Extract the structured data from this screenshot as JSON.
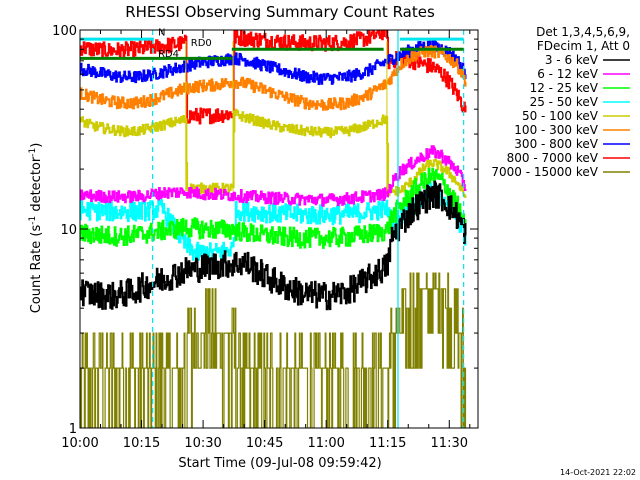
{
  "chart_data": {
    "type": "line",
    "title": "RHESSI Observing Summary Count Rates",
    "xlabel": "Start Time (09-Jul-08 09:59:42)",
    "ylabel_main": "Count Rate (s",
    "ylabel_sup": "-1",
    "ylabel_rest": " detector",
    "ylabel_end": ")",
    "yscale": "log",
    "ylim": [
      1,
      100
    ],
    "xlim_minutes": [
      0,
      97
    ],
    "x_ticks": [
      {
        "label": "10:00",
        "t": 0
      },
      {
        "label": "10:15",
        "t": 15
      },
      {
        "label": "10:30",
        "t": 30
      },
      {
        "label": "10:45",
        "t": 45
      },
      {
        "label": "11:00",
        "t": 60
      },
      {
        "label": "11:15",
        "t": 75
      },
      {
        "label": "11:30",
        "t": 90
      }
    ],
    "y_ticks": [
      {
        "label": "1",
        "v": 1
      },
      {
        "label": "10",
        "v": 10
      },
      {
        "label": "100",
        "v": 100
      }
    ],
    "legend_header": [
      "Det 1,3,4,5,6,9,",
      "FDecim 1, Att 0"
    ],
    "legend_position": "right",
    "timestamp": "14-Oct-2021 22:02",
    "annotations": [
      {
        "text": "N",
        "t": 19,
        "v": 94,
        "color": "#00e5ee"
      },
      {
        "text": "RD0",
        "t": 27,
        "v": 83,
        "color": "#007f00"
      },
      {
        "text": "RD4",
        "t": 19,
        "v": 73,
        "color": "#007f00"
      }
    ],
    "markers": {
      "night_bar": {
        "color": "#00e5ee",
        "value": 90,
        "spans": [
          [
            0,
            18
          ],
          [
            78,
            93.5
          ]
        ]
      },
      "rd0_bar": {
        "color": "#007f00",
        "value": 80,
        "spans": [
          [
            37,
            74
          ],
          [
            78,
            93.5
          ]
        ]
      },
      "rd4_bar": {
        "color": "#007f00",
        "value": 72,
        "spans": [
          [
            0,
            37
          ]
        ]
      },
      "cyan_solid": [
        77.5
      ],
      "cyan_dashed": [
        17.7,
        93.5
      ],
      "yellow_vertical": [
        25.8,
        37.3,
        74.8
      ]
    },
    "series": [
      {
        "name": "3 - 6 keV",
        "color": "#000000",
        "noise": 0.07,
        "points": [
          [
            0,
            4.9
          ],
          [
            3,
            4.7
          ],
          [
            8,
            4.6
          ],
          [
            12,
            4.8
          ],
          [
            18,
            5.4
          ],
          [
            22,
            5.8
          ],
          [
            25.8,
            6.2
          ],
          [
            28,
            6.3
          ],
          [
            33,
            6.6
          ],
          [
            37.3,
            6.7
          ],
          [
            40,
            6.8
          ],
          [
            45,
            5.8
          ],
          [
            50,
            5.1
          ],
          [
            55,
            4.7
          ],
          [
            60,
            4.6
          ],
          [
            65,
            4.8
          ],
          [
            70,
            5.6
          ],
          [
            74.8,
            6.5
          ],
          [
            76,
            9.0
          ],
          [
            78,
            10.5
          ],
          [
            81,
            12.5
          ],
          [
            84,
            14.0
          ],
          [
            86,
            15.0
          ],
          [
            88,
            14.5
          ],
          [
            90,
            13.0
          ],
          [
            92,
            11.5
          ],
          [
            93.5,
            10.0
          ],
          [
            94,
            9.2
          ]
        ]
      },
      {
        "name": "6 - 12 keV",
        "color": "#ff00ff",
        "noise": 0.03,
        "points": [
          [
            0,
            14.8
          ],
          [
            5,
            14.6
          ],
          [
            10,
            14.5
          ],
          [
            15,
            14.6
          ],
          [
            20,
            15.2
          ],
          [
            25.8,
            15.4
          ],
          [
            30,
            15.0
          ],
          [
            37.3,
            14.8
          ],
          [
            40,
            14.6
          ],
          [
            45,
            14.4
          ],
          [
            50,
            14.2
          ],
          [
            55,
            14.1
          ],
          [
            60,
            14.0
          ],
          [
            65,
            14.2
          ],
          [
            70,
            14.6
          ],
          [
            74.8,
            15.0
          ],
          [
            76,
            17.0
          ],
          [
            78,
            19.5
          ],
          [
            81,
            21.5
          ],
          [
            84,
            23.5
          ],
          [
            86,
            24.5
          ],
          [
            88,
            23.5
          ],
          [
            90,
            21.5
          ],
          [
            92,
            19.5
          ],
          [
            93.5,
            17.0
          ],
          [
            94,
            16.0
          ]
        ]
      },
      {
        "name": "12 - 25 keV",
        "color": "#00ff00",
        "noise": 0.05,
        "points": [
          [
            0,
            9.5
          ],
          [
            5,
            9.3
          ],
          [
            10,
            9.2
          ],
          [
            15,
            9.4
          ],
          [
            20,
            9.8
          ],
          [
            25.8,
            10.2
          ],
          [
            30,
            10.0
          ],
          [
            37.3,
            9.9
          ],
          [
            40,
            9.6
          ],
          [
            45,
            9.3
          ],
          [
            50,
            9.1
          ],
          [
            55,
            9.0
          ],
          [
            60,
            9.0
          ],
          [
            65,
            9.1
          ],
          [
            70,
            9.4
          ],
          [
            74.8,
            9.8
          ],
          [
            76,
            11.5
          ],
          [
            78,
            13.0
          ],
          [
            81,
            15.5
          ],
          [
            84,
            17.5
          ],
          [
            86,
            18.5
          ],
          [
            88,
            17.5
          ],
          [
            90,
            15.5
          ],
          [
            92,
            13.0
          ],
          [
            93.5,
            10.5
          ],
          [
            94,
            9.5
          ]
        ]
      },
      {
        "name": "25 - 50 keV",
        "color": "#00ffff",
        "noise": 0.05,
        "points": [
          [
            0,
            12.5
          ],
          [
            5,
            12.3
          ],
          [
            10,
            12.2
          ],
          [
            15,
            12.3
          ],
          [
            20,
            12.6
          ],
          [
            25.8,
            8.2
          ],
          [
            28,
            7.6
          ],
          [
            33,
            7.6
          ],
          [
            37.3,
            8.0
          ],
          [
            38,
            12.4
          ],
          [
            45,
            12.1
          ],
          [
            50,
            11.9
          ],
          [
            55,
            11.8
          ],
          [
            60,
            11.8
          ],
          [
            65,
            11.9
          ],
          [
            70,
            12.2
          ],
          [
            74.8,
            12.6
          ],
          [
            76,
            11.0
          ],
          [
            78,
            11.5
          ],
          [
            81,
            13.0
          ],
          [
            84,
            14.5
          ],
          [
            86,
            15.5
          ],
          [
            88,
            14.5
          ],
          [
            90,
            13.5
          ],
          [
            92,
            11.5
          ],
          [
            93.5,
            9.5
          ],
          [
            94,
            8.8
          ]
        ]
      },
      {
        "name": "50 - 100 keV",
        "color": "#cccc00",
        "noise": 0.025,
        "points": [
          [
            0,
            35
          ],
          [
            3,
            33
          ],
          [
            6,
            32
          ],
          [
            10,
            31
          ],
          [
            14,
            31
          ],
          [
            18,
            32.5
          ],
          [
            22,
            34
          ],
          [
            25.8,
            35.5
          ],
          [
            26,
            16.0
          ],
          [
            30,
            16.0
          ],
          [
            37.3,
            16.0
          ],
          [
            37.5,
            38
          ],
          [
            40,
            36.5
          ],
          [
            45,
            34
          ],
          [
            50,
            32
          ],
          [
            55,
            31
          ],
          [
            60,
            30.5
          ],
          [
            65,
            31
          ],
          [
            70,
            33
          ],
          [
            74.8,
            36
          ],
          [
            75,
            15.5
          ],
          [
            78,
            15.5
          ],
          [
            81,
            17.5
          ],
          [
            84,
            20.5
          ],
          [
            86,
            21.5
          ],
          [
            88,
            20.5
          ],
          [
            90,
            19.0
          ],
          [
            92,
            17.0
          ],
          [
            93.5,
            15.0
          ],
          [
            94,
            14.5
          ]
        ]
      },
      {
        "name": "100 - 300 keV",
        "color": "#ff8000",
        "noise": 0.03,
        "points": [
          [
            0,
            48
          ],
          [
            3,
            46
          ],
          [
            6,
            44
          ],
          [
            10,
            43
          ],
          [
            14,
            43
          ],
          [
            18,
            45
          ],
          [
            22,
            48
          ],
          [
            25.8,
            51
          ],
          [
            28,
            52
          ],
          [
            33,
            53
          ],
          [
            37.3,
            55
          ],
          [
            40,
            54
          ],
          [
            45,
            50
          ],
          [
            50,
            46
          ],
          [
            55,
            43
          ],
          [
            60,
            42
          ],
          [
            65,
            43
          ],
          [
            70,
            47
          ],
          [
            74.8,
            54
          ],
          [
            78,
            67
          ],
          [
            81,
            74
          ],
          [
            84,
            78
          ],
          [
            86,
            78
          ],
          [
            88,
            76
          ],
          [
            90,
            72
          ],
          [
            92,
            66
          ],
          [
            93.5,
            58
          ],
          [
            94,
            55
          ]
        ]
      },
      {
        "name": "300 - 800 keV",
        "color": "#0000ff",
        "noise": 0.03,
        "points": [
          [
            0,
            64
          ],
          [
            3,
            62
          ],
          [
            6,
            60
          ],
          [
            10,
            58
          ],
          [
            14,
            58
          ],
          [
            18,
            60
          ],
          [
            22,
            63
          ],
          [
            25.8,
            66
          ],
          [
            28,
            68
          ],
          [
            33,
            70
          ],
          [
            37.3,
            72
          ],
          [
            40,
            71
          ],
          [
            45,
            66
          ],
          [
            50,
            62
          ],
          [
            55,
            58
          ],
          [
            60,
            57
          ],
          [
            65,
            58
          ],
          [
            70,
            62
          ],
          [
            74.8,
            70
          ],
          [
            78,
            75
          ],
          [
            81,
            80
          ],
          [
            84,
            83
          ],
          [
            86,
            83
          ],
          [
            88,
            81
          ],
          [
            90,
            77
          ],
          [
            92,
            70
          ],
          [
            93.5,
            63
          ],
          [
            94,
            60
          ]
        ]
      },
      {
        "name": "800 - 7000 keV",
        "color": "#ff0000",
        "noise": 0.04,
        "points": [
          [
            0,
            82
          ],
          [
            3,
            80
          ],
          [
            6,
            79
          ],
          [
            10,
            79
          ],
          [
            14,
            80
          ],
          [
            18,
            82
          ],
          [
            22,
            84
          ],
          [
            25.8,
            86
          ],
          [
            26,
            37
          ],
          [
            30,
            37
          ],
          [
            37.3,
            38
          ],
          [
            37.5,
            92
          ],
          [
            40,
            91
          ],
          [
            45,
            89
          ],
          [
            50,
            87
          ],
          [
            55,
            86
          ],
          [
            60,
            86
          ],
          [
            65,
            87
          ],
          [
            70,
            91
          ],
          [
            74.8,
            100
          ],
          [
            75,
            69
          ],
          [
            78,
            72
          ],
          [
            81,
            70
          ],
          [
            84,
            67
          ],
          [
            86,
            65
          ],
          [
            88,
            61
          ],
          [
            90,
            55
          ],
          [
            92,
            47
          ],
          [
            93.5,
            41
          ],
          [
            94,
            39
          ]
        ]
      },
      {
        "name": "7000 - 15000 keV",
        "color": "#808000",
        "noise": 0,
        "points": [
          [
            0,
            2.0
          ],
          [
            5,
            2.0
          ],
          [
            10,
            2.0
          ],
          [
            15,
            2.0
          ],
          [
            18,
            2.0
          ],
          [
            20,
            2.0
          ],
          [
            25.8,
            2.5
          ],
          [
            28,
            3.0
          ],
          [
            33,
            3.0
          ],
          [
            37.3,
            2.5
          ],
          [
            40,
            2.0
          ],
          [
            45,
            2.0
          ],
          [
            50,
            2.0
          ],
          [
            55,
            2.0
          ],
          [
            60,
            2.0
          ],
          [
            65,
            2.0
          ],
          [
            70,
            2.0
          ],
          [
            74.8,
            2.0
          ],
          [
            76,
            2.5
          ],
          [
            78,
            3.0
          ],
          [
            81,
            4.0
          ],
          [
            84,
            5.0
          ],
          [
            86,
            5.5
          ],
          [
            88,
            5.0
          ],
          [
            90,
            4.0
          ],
          [
            92,
            3.0
          ],
          [
            93.5,
            2.5
          ],
          [
            94,
            2.0
          ]
        ]
      }
    ]
  }
}
